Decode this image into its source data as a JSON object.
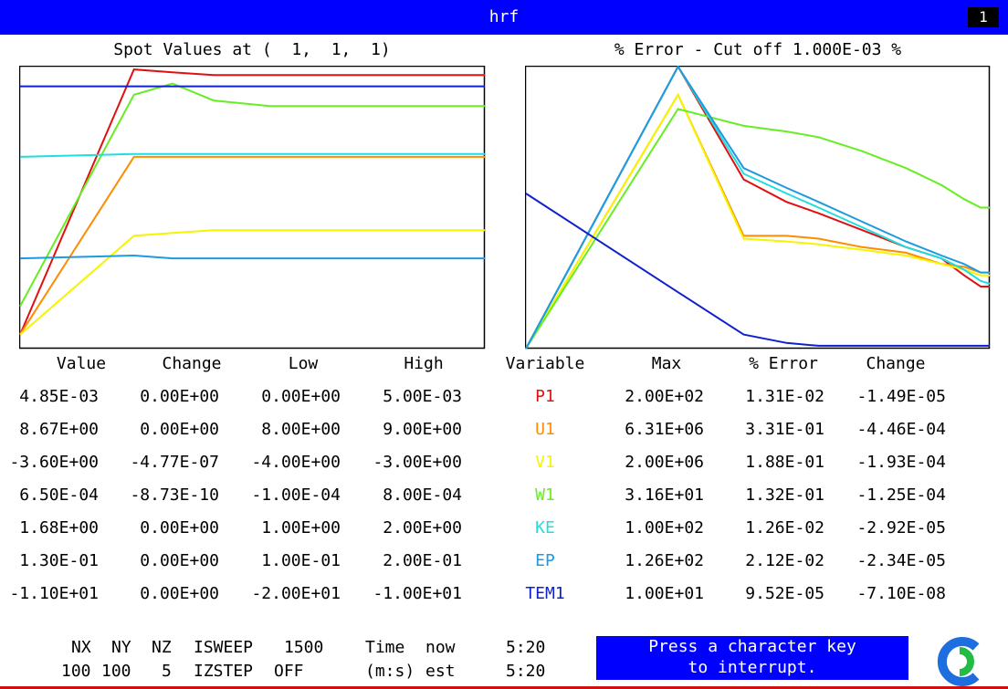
{
  "window": {
    "title": "hrf",
    "pane_number": "1"
  },
  "left_chart_title": "Spot Values at (  1,  1,  1)",
  "right_chart_title": "% Error - Cut off 1.000E-03 %",
  "colors": {
    "P1": "#e01010",
    "U1": "#ff8c00",
    "V1": "#f5f500",
    "W1": "#66ee22",
    "KE": "#22dddd",
    "EP": "#1e9ae0",
    "TEM1": "#1020cc",
    "title_bar": "#0000ff"
  },
  "table": {
    "headers": [
      "Value",
      "Change",
      "Low",
      "High",
      "Variable",
      "Max",
      "% Error",
      "Change"
    ],
    "rows": [
      {
        "value": "4.85E-03",
        "change": "0.00E+00",
        "low": "0.00E+00",
        "high": "5.00E-03",
        "variable": "P1",
        "max": "2.00E+02",
        "error": "1.31E-02",
        "err_change": "-1.49E-05"
      },
      {
        "value": "8.67E+00",
        "change": "0.00E+00",
        "low": "8.00E+00",
        "high": "9.00E+00",
        "variable": "U1",
        "max": "6.31E+06",
        "error": "3.31E-01",
        "err_change": "-4.46E-04"
      },
      {
        "value": "-3.60E+00",
        "change": "-4.77E-07",
        "low": "-4.00E+00",
        "high": "-3.00E+00",
        "variable": "V1",
        "max": "2.00E+06",
        "error": "1.88E-01",
        "err_change": "-1.93E-04"
      },
      {
        "value": "6.50E-04",
        "change": "-8.73E-10",
        "low": "-1.00E-04",
        "high": "8.00E-04",
        "variable": "W1",
        "max": "3.16E+01",
        "error": "1.32E-01",
        "err_change": "-1.25E-04"
      },
      {
        "value": "1.68E+00",
        "change": "0.00E+00",
        "low": "1.00E+00",
        "high": "2.00E+00",
        "variable": "KE",
        "max": "1.00E+02",
        "error": "1.26E-02",
        "err_change": "-2.92E-05"
      },
      {
        "value": "1.30E-01",
        "change": "0.00E+00",
        "low": "1.00E-01",
        "high": "2.00E-01",
        "variable": "EP",
        "max": "1.26E+02",
        "error": "2.12E-02",
        "err_change": "-2.34E-05"
      },
      {
        "value": "-1.10E+01",
        "change": "0.00E+00",
        "low": "-2.00E+01",
        "high": "-1.00E+01",
        "variable": "TEM1",
        "max": "1.00E+01",
        "error": "9.52E-05",
        "err_change": "-7.10E-08"
      }
    ]
  },
  "footer": {
    "nx_label": "NX",
    "ny_label": "NY",
    "nz_label": "NZ",
    "nx": "100",
    "ny": "100",
    "nz": "5",
    "isweep_label": "ISWEEP",
    "isweep": "1500",
    "izstep_label": "IZSTEP",
    "izstep": "OFF",
    "time_label": "Time",
    "ms_label": "(m:s)",
    "now_label": "now",
    "est_label": "est",
    "time_now": "5:20",
    "time_est": "5:20"
  },
  "interrupt": {
    "line1": "Press a character key",
    "line2": "to interrupt."
  },
  "chart_data": [
    {
      "type": "line",
      "title": "Spot Values at (  1,  1,  1)",
      "x": [
        0,
        5,
        10,
        20,
        50,
        100,
        200,
        500,
        1000,
        1500
      ],
      "note_axis": "fraction of Low..High range",
      "ylim": [
        0,
        1
      ],
      "series": [
        {
          "name": "P1",
          "values": [
            0.05,
            0.99,
            0.98,
            0.97,
            0.97,
            0.97,
            0.97,
            0.97,
            0.97,
            0.97
          ]
        },
        {
          "name": "U1",
          "values": [
            0.05,
            0.68,
            0.68,
            0.68,
            0.68,
            0.68,
            0.68,
            0.68,
            0.68,
            0.68
          ]
        },
        {
          "name": "V1",
          "values": [
            0.05,
            0.4,
            0.41,
            0.42,
            0.42,
            0.42,
            0.42,
            0.42,
            0.42,
            0.42
          ]
        },
        {
          "name": "W1",
          "values": [
            0.15,
            0.9,
            0.94,
            0.88,
            0.86,
            0.86,
            0.86,
            0.86,
            0.86,
            0.86
          ]
        },
        {
          "name": "KE",
          "values": [
            0.68,
            0.69,
            0.69,
            0.69,
            0.69,
            0.69,
            0.69,
            0.69,
            0.69,
            0.69
          ]
        },
        {
          "name": "EP",
          "values": [
            0.32,
            0.33,
            0.32,
            0.32,
            0.32,
            0.32,
            0.32,
            0.32,
            0.32,
            0.32
          ]
        },
        {
          "name": "TEM1",
          "values": [
            0.93,
            0.93,
            0.93,
            0.93,
            0.93,
            0.93,
            0.93,
            0.93,
            0.93,
            0.93
          ]
        }
      ],
      "grid": false
    },
    {
      "type": "line",
      "title": "% Error - Cut off 1.000E-03 %",
      "x": [
        0,
        10,
        30,
        60,
        100,
        200,
        400,
        700,
        1000,
        1300,
        1500
      ],
      "ylim": [
        0,
        1
      ],
      "series": [
        {
          "name": "P1",
          "values": [
            0.0,
            1.0,
            0.6,
            0.52,
            0.48,
            0.42,
            0.36,
            0.32,
            0.26,
            0.22,
            0.22
          ]
        },
        {
          "name": "U1",
          "values": [
            0.0,
            0.9,
            0.4,
            0.4,
            0.39,
            0.36,
            0.34,
            0.3,
            0.29,
            0.27,
            0.27
          ]
        },
        {
          "name": "V1",
          "values": [
            0.0,
            0.9,
            0.39,
            0.38,
            0.37,
            0.35,
            0.33,
            0.3,
            0.28,
            0.26,
            0.26
          ]
        },
        {
          "name": "W1",
          "values": [
            0.0,
            0.85,
            0.79,
            0.77,
            0.75,
            0.7,
            0.64,
            0.58,
            0.53,
            0.5,
            0.5
          ]
        },
        {
          "name": "KE",
          "values": [
            0.0,
            1.0,
            0.62,
            0.55,
            0.5,
            0.43,
            0.36,
            0.32,
            0.28,
            0.24,
            0.23
          ]
        },
        {
          "name": "EP",
          "values": [
            0.0,
            1.0,
            0.64,
            0.57,
            0.52,
            0.45,
            0.38,
            0.33,
            0.3,
            0.27,
            0.27
          ]
        },
        {
          "name": "TEM1",
          "values": [
            0.55,
            0.2,
            0.05,
            0.02,
            0.01,
            0.01,
            0.01,
            0.01,
            0.01,
            0.01,
            0.01
          ]
        }
      ],
      "grid": false
    }
  ]
}
